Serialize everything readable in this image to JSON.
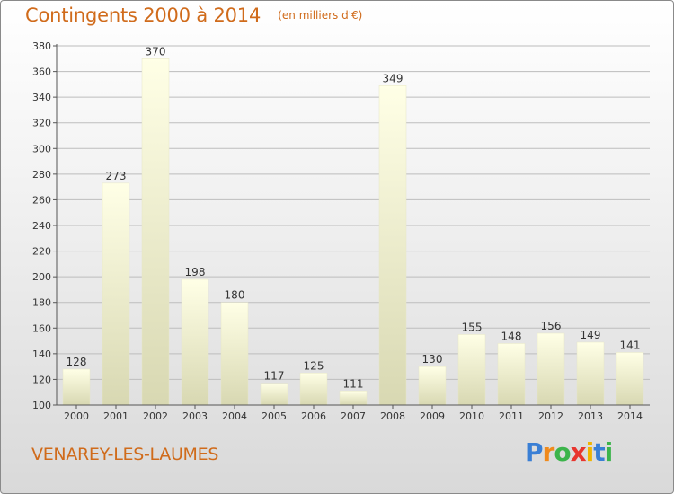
{
  "title": "Contingents 2000 à 2014",
  "subtitle": "(en milliers d'€)",
  "town": "VENAREY-LES-LAUMES",
  "brand": {
    "letters": [
      "P",
      "r",
      "o",
      "x",
      "i",
      "t",
      "i"
    ],
    "colors": [
      "#3a7fd5",
      "#f08a1c",
      "#3cb44b",
      "#e8352e",
      "#f0b400",
      "#3a7fd5",
      "#3cb44b"
    ]
  },
  "colors": {
    "title": "#d06b1b",
    "bar_top": "#ffffe6",
    "bar_bottom": "#d8d8b2",
    "axis": "#555555",
    "grid": "#bdbdbd"
  },
  "chart_data": {
    "type": "bar",
    "title": "Contingents 2000 à 2014",
    "subtitle": "(en milliers d'€)",
    "categories": [
      "2000",
      "2001",
      "2002",
      "2003",
      "2004",
      "2005",
      "2006",
      "2007",
      "2008",
      "2009",
      "2010",
      "2011",
      "2012",
      "2013",
      "2014"
    ],
    "values": [
      128,
      273,
      370,
      198,
      180,
      117,
      125,
      111,
      349,
      130,
      155,
      148,
      156,
      149,
      141
    ],
    "ylim": [
      100,
      380
    ],
    "yticks": [
      100,
      120,
      140,
      160,
      180,
      200,
      220,
      240,
      260,
      280,
      300,
      320,
      340,
      360,
      380
    ],
    "grid": true,
    "data_labels": true,
    "legend": "none"
  }
}
